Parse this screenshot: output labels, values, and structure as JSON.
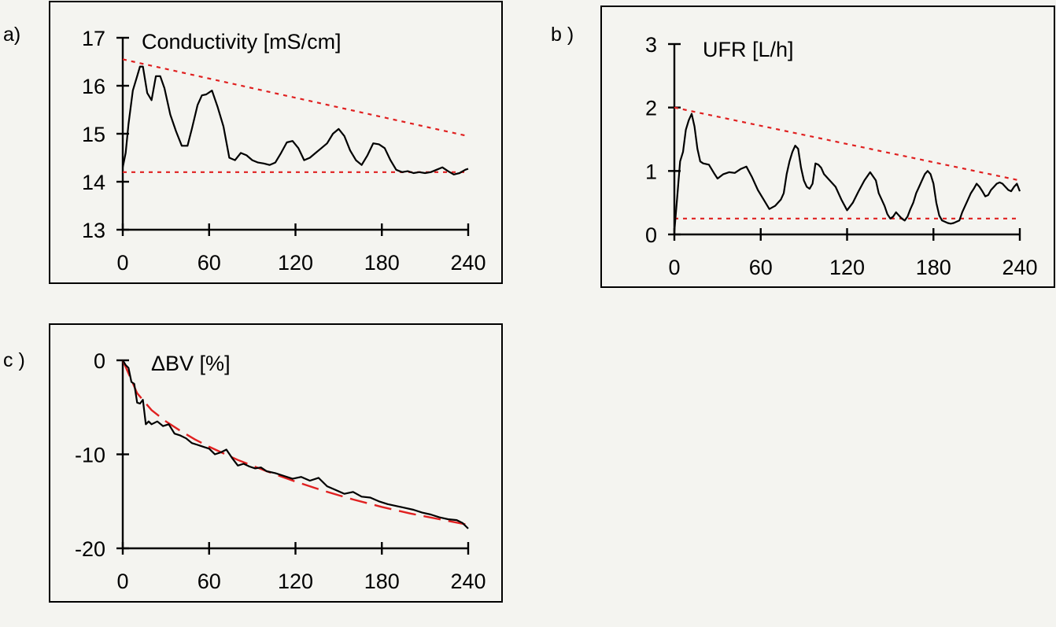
{
  "chart_data": [
    {
      "panel_label": "a)",
      "type": "line",
      "title": "Conductivity [mS/cm]",
      "xlabel": "",
      "ylabel": "",
      "xlim": [
        0,
        240
      ],
      "ylim": [
        13,
        17
      ],
      "xticks": [
        0,
        60,
        120,
        180,
        240
      ],
      "yticks": [
        13,
        14,
        15,
        16,
        17
      ],
      "series": [
        {
          "x": [
            0,
            2,
            4,
            7,
            10,
            12,
            14,
            17,
            20,
            23,
            26,
            29,
            33,
            37,
            41,
            45,
            48,
            52,
            55,
            58,
            62,
            66,
            70,
            74,
            78,
            82,
            86,
            90,
            94,
            98,
            102,
            106,
            110,
            114,
            118,
            122,
            126,
            130,
            134,
            138,
            142,
            146,
            150,
            154,
            158,
            162,
            166,
            170,
            174,
            178,
            182,
            186,
            190,
            194,
            198,
            202,
            206,
            210,
            214,
            218,
            222,
            226,
            230,
            234,
            238,
            240
          ],
          "values": [
            14.3,
            14.6,
            15.2,
            15.9,
            16.2,
            16.4,
            16.4,
            15.85,
            15.7,
            16.2,
            16.2,
            15.95,
            15.4,
            15.05,
            14.75,
            14.75,
            15.1,
            15.6,
            15.8,
            15.82,
            15.9,
            15.55,
            15.15,
            14.5,
            14.45,
            14.6,
            14.55,
            14.45,
            14.4,
            14.38,
            14.35,
            14.4,
            14.6,
            14.82,
            14.85,
            14.7,
            14.45,
            14.5,
            14.6,
            14.7,
            14.8,
            15.0,
            15.1,
            14.95,
            14.65,
            14.45,
            14.35,
            14.55,
            14.8,
            14.78,
            14.7,
            14.45,
            14.25,
            14.2,
            14.22,
            14.18,
            14.2,
            14.18,
            14.2,
            14.25,
            14.3,
            14.22,
            14.15,
            14.18,
            14.25,
            14.27
          ]
        }
      ],
      "reference_lines": [
        {
          "style": "dotted",
          "color": "#e02020",
          "x": [
            0,
            240
          ],
          "values": [
            16.55,
            14.95
          ]
        },
        {
          "style": "dotted",
          "color": "#e02020",
          "x": [
            0,
            240
          ],
          "values": [
            14.2,
            14.2
          ]
        }
      ]
    },
    {
      "panel_label": "b )",
      "type": "line",
      "title": "UFR [L/h]",
      "xlabel": "",
      "ylabel": "",
      "xlim": [
        0,
        240
      ],
      "ylim": [
        0,
        3
      ],
      "xticks": [
        0,
        60,
        120,
        180,
        240
      ],
      "yticks": [
        0,
        1,
        2,
        3
      ],
      "series": [
        {
          "x": [
            0,
            2,
            4,
            6,
            8,
            10,
            12,
            14,
            16,
            18,
            20,
            24,
            28,
            30,
            34,
            38,
            42,
            46,
            50,
            54,
            58,
            62,
            66,
            70,
            74,
            76,
            78,
            80,
            82,
            84,
            86,
            88,
            90,
            92,
            94,
            96,
            98,
            100,
            102,
            104,
            108,
            112,
            116,
            120,
            124,
            128,
            132,
            136,
            140,
            142,
            144,
            146,
            148,
            150,
            152,
            154,
            156,
            158,
            160,
            162,
            164,
            166,
            168,
            170,
            172,
            174,
            176,
            178,
            180,
            182,
            184,
            186,
            188,
            190,
            192,
            194,
            196,
            198,
            200,
            202,
            204,
            206,
            208,
            210,
            212,
            214,
            216,
            218,
            220,
            222,
            224,
            226,
            228,
            230,
            232,
            234,
            236,
            238,
            240
          ],
          "values": [
            0.05,
            0.6,
            1.15,
            1.3,
            1.65,
            1.8,
            1.9,
            1.7,
            1.35,
            1.15,
            1.12,
            1.1,
            0.95,
            0.88,
            0.95,
            0.98,
            0.97,
            1.03,
            1.07,
            0.9,
            0.7,
            0.55,
            0.4,
            0.45,
            0.55,
            0.65,
            0.95,
            1.15,
            1.3,
            1.4,
            1.35,
            1.05,
            0.85,
            0.75,
            0.72,
            0.8,
            1.12,
            1.1,
            1.05,
            0.95,
            0.85,
            0.75,
            0.55,
            0.38,
            0.5,
            0.68,
            0.85,
            0.98,
            0.85,
            0.65,
            0.55,
            0.45,
            0.32,
            0.25,
            0.28,
            0.35,
            0.3,
            0.25,
            0.22,
            0.28,
            0.4,
            0.5,
            0.65,
            0.75,
            0.85,
            0.95,
            1.0,
            0.95,
            0.8,
            0.5,
            0.3,
            0.22,
            0.2,
            0.18,
            0.17,
            0.18,
            0.2,
            0.22,
            0.35,
            0.45,
            0.55,
            0.65,
            0.72,
            0.8,
            0.75,
            0.68,
            0.6,
            0.62,
            0.7,
            0.75,
            0.8,
            0.82,
            0.8,
            0.75,
            0.7,
            0.68,
            0.75,
            0.8,
            0.68
          ],
          "note": ""
        }
      ],
      "reference_lines": [
        {
          "style": "dotted",
          "color": "#e02020",
          "x": [
            0,
            240
          ],
          "values": [
            2.0,
            0.85
          ]
        },
        {
          "style": "dotted",
          "color": "#e02020",
          "x": [
            0,
            240
          ],
          "values": [
            0.25,
            0.25
          ]
        }
      ]
    },
    {
      "panel_label": "c )",
      "type": "line",
      "title": "ΔBV [%]",
      "xlabel": "",
      "ylabel": "",
      "xlim": [
        0,
        240
      ],
      "ylim": [
        -20,
        0
      ],
      "xticks": [
        0,
        60,
        120,
        180,
        240
      ],
      "yticks": [
        0,
        -10,
        -20
      ],
      "series": [
        {
          "x": [
            0,
            2,
            4,
            6,
            8,
            10,
            12,
            14,
            16,
            18,
            20,
            24,
            28,
            32,
            36,
            40,
            44,
            48,
            52,
            56,
            60,
            64,
            68,
            72,
            76,
            80,
            84,
            88,
            92,
            96,
            100,
            106,
            112,
            118,
            124,
            130,
            136,
            142,
            148,
            154,
            160,
            166,
            172,
            178,
            184,
            190,
            196,
            202,
            208,
            214,
            220,
            226,
            232,
            236,
            240
          ],
          "values": [
            0.0,
            -0.5,
            -0.8,
            -2.3,
            -2.5,
            -4.5,
            -4.6,
            -4.2,
            -6.8,
            -6.5,
            -6.8,
            -6.5,
            -7.0,
            -6.8,
            -7.8,
            -8.0,
            -8.3,
            -8.8,
            -9.0,
            -9.2,
            -9.4,
            -10.0,
            -9.8,
            -9.5,
            -10.4,
            -11.2,
            -11.0,
            -11.3,
            -11.5,
            -11.4,
            -11.8,
            -12.0,
            -12.3,
            -12.6,
            -12.4,
            -12.8,
            -12.5,
            -13.4,
            -13.8,
            -14.2,
            -14.0,
            -14.5,
            -14.6,
            -15.0,
            -15.3,
            -15.5,
            -15.7,
            -15.9,
            -16.2,
            -16.4,
            -16.7,
            -16.9,
            -17.0,
            -17.3,
            -17.9
          ]
        }
      ],
      "reference_lines": [
        {
          "style": "dashed",
          "color": "#e02020",
          "x": [
            0,
            10,
            20,
            30,
            40,
            50,
            60,
            80,
            100,
            120,
            140,
            160,
            180,
            200,
            220,
            240
          ],
          "values": [
            0.0,
            -3.5,
            -5.3,
            -6.5,
            -7.5,
            -8.4,
            -9.2,
            -10.6,
            -11.8,
            -12.9,
            -13.9,
            -14.8,
            -15.6,
            -16.3,
            -16.9,
            -17.5
          ]
        }
      ]
    }
  ]
}
